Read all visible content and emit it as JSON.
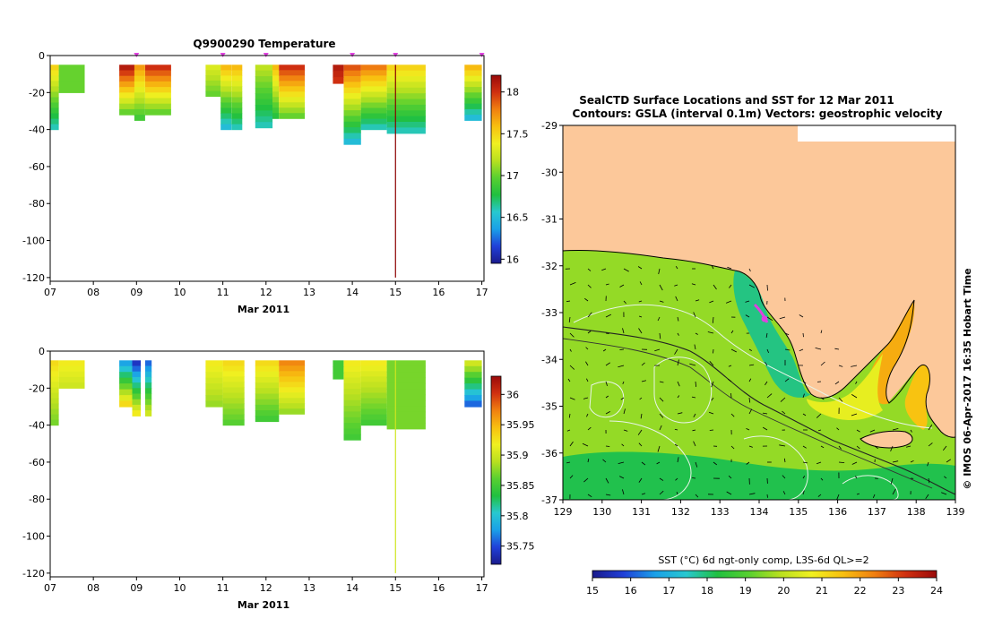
{
  "colors": {
    "land": "#fcc89a",
    "axis": "#000000",
    "palette": [
      "#1a1a8c",
      "#2040d8",
      "#1aa0e8",
      "#28c8d0",
      "#20c040",
      "#58d030",
      "#b8e020",
      "#f0f020",
      "#f8c010",
      "#f08010",
      "#d03010",
      "#9a0a0a"
    ],
    "marker": "#e040e0",
    "stem": "#8b0000"
  },
  "chart_data": [
    {
      "type": "heatmap",
      "title": "Q9900290  Temperature",
      "xlabel": "Mar 2011",
      "x_ticks": [
        "07",
        "08",
        "09",
        "10",
        "11",
        "12",
        "13",
        "14",
        "15",
        "16",
        "17"
      ],
      "x_range": [
        7,
        17.05
      ],
      "y_ticks": [
        0,
        -20,
        -40,
        -60,
        -80,
        -100,
        -120
      ],
      "y_range": [
        -122,
        0
      ],
      "colorbar": {
        "ticks": [
          18,
          17.5,
          17,
          16.5,
          16
        ],
        "range": [
          15.95,
          18.2
        ]
      },
      "profile_markers_day": [
        9.0,
        11.0,
        12.0,
        14.0,
        15.0,
        17.0
      ],
      "columns": [
        {
          "x0": 7.0,
          "x1": 7.2,
          "bottom": -40,
          "top_value": 17.5,
          "bottom_value": 16.6
        },
        {
          "x0": 7.2,
          "x1": 7.8,
          "bottom": -20,
          "top_value": 17.0,
          "bottom_value": 17.0
        },
        {
          "x0": 8.6,
          "x1": 8.95,
          "bottom": -32,
          "top_value": 18.1,
          "bottom_value": 17.0
        },
        {
          "x0": 8.95,
          "x1": 9.2,
          "bottom": -35,
          "top_value": 17.7,
          "bottom_value": 16.9
        },
        {
          "x0": 9.2,
          "x1": 9.8,
          "bottom": -32,
          "top_value": 18.0,
          "bottom_value": 17.0
        },
        {
          "x0": 10.6,
          "x1": 10.95,
          "bottom": -22,
          "top_value": 17.3,
          "bottom_value": 17.0
        },
        {
          "x0": 10.95,
          "x1": 11.2,
          "bottom": -40,
          "top_value": 17.6,
          "bottom_value": 16.5
        },
        {
          "x0": 11.2,
          "x1": 11.45,
          "bottom": -40,
          "top_value": 17.6,
          "bottom_value": 16.6
        },
        {
          "x0": 11.75,
          "x1": 12.15,
          "bottom": -39,
          "top_value": 17.2,
          "bottom_value": 16.6
        },
        {
          "x0": 12.15,
          "x1": 12.3,
          "bottom": -34,
          "top_value": 17.6,
          "bottom_value": 16.8
        },
        {
          "x0": 12.3,
          "x1": 12.9,
          "bottom": -34,
          "top_value": 18.0,
          "bottom_value": 17.0
        },
        {
          "x0": 13.55,
          "x1": 13.8,
          "bottom": -15,
          "top_value": 18.1,
          "bottom_value": 18.0
        },
        {
          "x0": 13.8,
          "x1": 14.2,
          "bottom": -48,
          "top_value": 17.9,
          "bottom_value": 16.5
        },
        {
          "x0": 14.2,
          "x1": 14.8,
          "bottom": -40,
          "top_value": 17.8,
          "bottom_value": 16.6
        },
        {
          "x0": 14.8,
          "x1": 15.7,
          "bottom": -42,
          "top_value": 17.5,
          "bottom_value": 16.6
        },
        {
          "x0": 16.6,
          "x1": 17.0,
          "bottom": -35,
          "top_value": 17.6,
          "bottom_value": 16.5
        }
      ]
    },
    {
      "type": "heatmap",
      "title": "",
      "xlabel": "Mar 2011",
      "x_ticks": [
        "07",
        "08",
        "09",
        "10",
        "11",
        "12",
        "13",
        "14",
        "15",
        "16",
        "17"
      ],
      "x_range": [
        7,
        17.05
      ],
      "y_ticks": [
        0,
        -20,
        -40,
        -60,
        -80,
        -100,
        -120
      ],
      "y_range": [
        -122,
        0
      ],
      "colorbar": {
        "ticks": [
          36,
          35.95,
          35.9,
          35.85,
          35.8,
          35.75
        ],
        "range": [
          35.72,
          36.03
        ]
      },
      "columns": [
        {
          "x0": 7.0,
          "x1": 7.2,
          "bottom": -40,
          "top_value": 35.93,
          "bottom_value": 35.87
        },
        {
          "x0": 7.2,
          "x1": 7.8,
          "bottom": -20,
          "top_value": 35.92,
          "bottom_value": 35.9
        },
        {
          "x0": 8.6,
          "x1": 8.9,
          "bottom": -30,
          "top_value": 35.78,
          "bottom_value": 35.93
        },
        {
          "x0": 8.9,
          "x1": 9.1,
          "bottom": -35,
          "top_value": 35.74,
          "bottom_value": 35.92
        },
        {
          "x0": 9.2,
          "x1": 9.35,
          "bottom": -35,
          "top_value": 35.76,
          "bottom_value": 35.9
        },
        {
          "x0": 10.6,
          "x1": 11.0,
          "bottom": -30,
          "top_value": 35.92,
          "bottom_value": 35.88
        },
        {
          "x0": 11.0,
          "x1": 11.5,
          "bottom": -40,
          "top_value": 35.93,
          "bottom_value": 35.86
        },
        {
          "x0": 11.75,
          "x1": 12.3,
          "bottom": -38,
          "top_value": 35.93,
          "bottom_value": 35.85
        },
        {
          "x0": 12.3,
          "x1": 12.9,
          "bottom": -34,
          "top_value": 35.97,
          "bottom_value": 35.88
        },
        {
          "x0": 13.55,
          "x1": 13.8,
          "bottom": -15,
          "top_value": 35.85,
          "bottom_value": 35.85
        },
        {
          "x0": 13.8,
          "x1": 14.2,
          "bottom": -48,
          "top_value": 35.92,
          "bottom_value": 35.85
        },
        {
          "x0": 14.2,
          "x1": 14.8,
          "bottom": -40,
          "top_value": 35.92,
          "bottom_value": 35.85
        },
        {
          "x0": 14.8,
          "x1": 15.7,
          "bottom": -42,
          "top_value": 35.87,
          "bottom_value": 35.87
        },
        {
          "x0": 16.6,
          "x1": 17.0,
          "bottom": -30,
          "top_value": 35.9,
          "bottom_value": 35.76
        }
      ]
    },
    {
      "type": "heatmap",
      "title": "SealCTD Surface Locations and SST for 12 Mar 2011",
      "subtitle": "Contours: GSLA (interval 0.1m)  Vectors: geostrophic velocity",
      "x_ticks": [
        129,
        130,
        131,
        132,
        133,
        134,
        135,
        136,
        137,
        138,
        139
      ],
      "x_range": [
        129,
        139
      ],
      "y_ticks": [
        -29,
        -30,
        -31,
        -32,
        -33,
        -34,
        -35,
        -36,
        -37
      ],
      "y_range": [
        -37,
        -29
      ],
      "colorbar": {
        "label": "SST (°C) 6d ngt-only comp, L3S-6d QL>=2",
        "ticks": [
          15,
          16,
          17,
          18,
          19,
          20,
          21,
          22,
          23,
          24
        ],
        "range": [
          15,
          24
        ]
      },
      "side_label": "© IMOS 06-Apr-2017 16:35 Hobart Time"
    }
  ]
}
